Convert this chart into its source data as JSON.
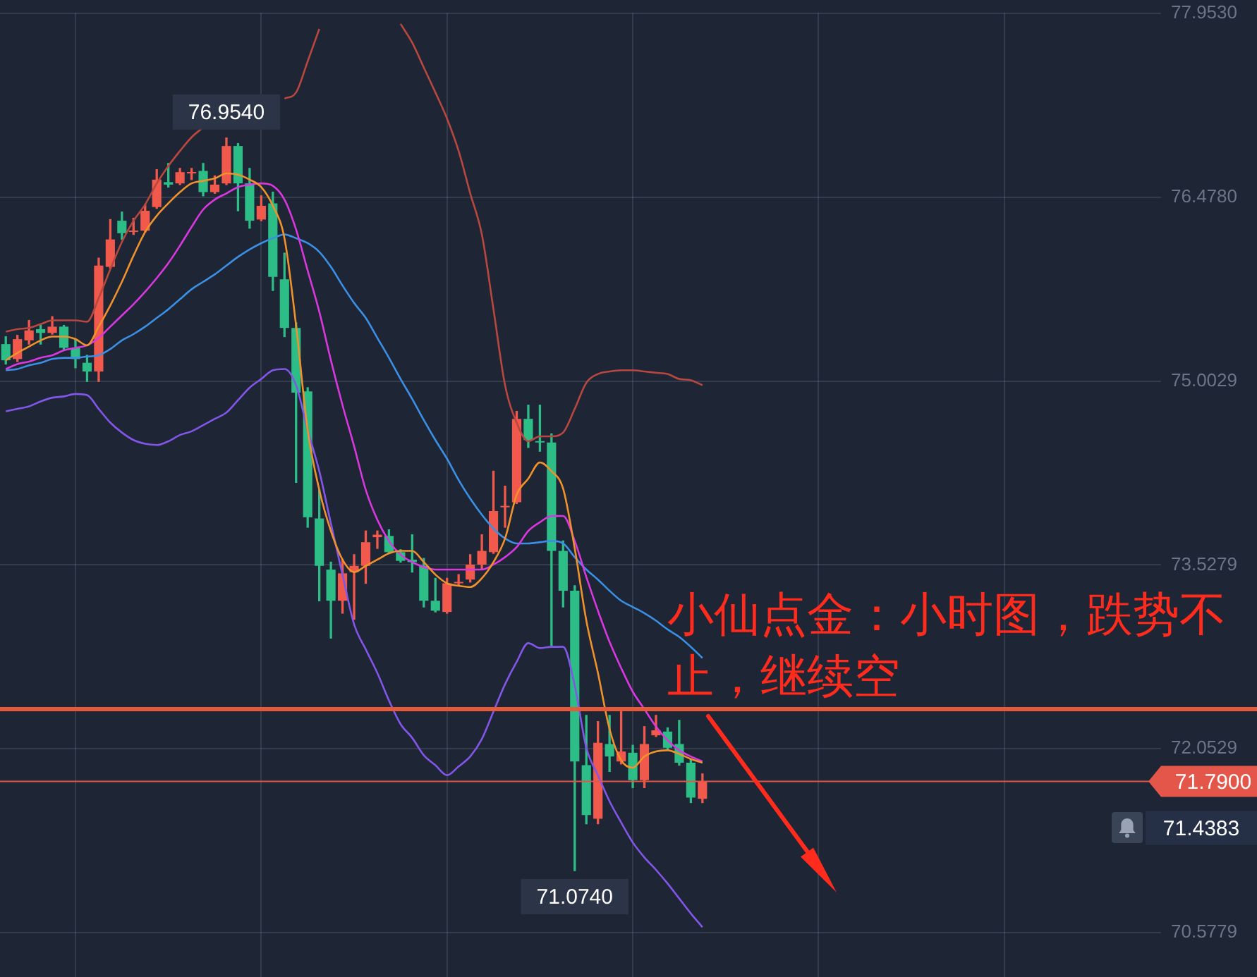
{
  "chart_data": {
    "type": "candlestick",
    "categories": [
      null,
      null,
      null,
      null,
      null,
      null,
      null,
      null,
      null,
      null,
      null,
      null,
      null,
      null,
      null,
      null,
      null,
      null,
      null,
      null,
      null,
      null,
      null,
      null,
      null,
      null,
      null,
      null,
      null,
      null,
      null,
      null,
      null,
      null,
      null,
      null,
      null,
      null,
      null,
      null,
      null,
      null,
      null,
      null,
      null,
      null,
      null,
      null,
      null,
      null,
      null,
      null,
      null,
      null,
      null,
      null,
      null,
      null,
      null,
      null,
      null,
      null,
      null,
      null,
      null,
      null,
      null,
      null,
      null,
      null,
      null,
      null,
      null,
      null,
      null,
      null,
      null,
      null,
      null,
      null,
      null,
      null,
      null,
      null,
      null,
      null,
      null,
      null,
      null,
      null,
      null,
      null,
      null,
      null,
      null,
      null,
      null,
      null,
      null,
      null
    ],
    "ohlc": [
      [
        75.3,
        75.36,
        75.14,
        75.17
      ],
      [
        75.18,
        75.37,
        75.16,
        75.34
      ],
      [
        75.33,
        75.49,
        75.3,
        75.41
      ],
      [
        75.42,
        75.45,
        75.3,
        75.39
      ],
      [
        75.39,
        75.52,
        75.38,
        75.44
      ],
      [
        75.44,
        75.45,
        75.26,
        75.27
      ],
      [
        75.27,
        75.34,
        75.11,
        75.18
      ],
      [
        75.15,
        75.21,
        75.0,
        75.08
      ],
      [
        75.08,
        75.99,
        75.0,
        75.93
      ],
      [
        75.92,
        76.3,
        75.91,
        76.14
      ],
      [
        76.29,
        76.36,
        76.14,
        76.19
      ],
      [
        76.2,
        76.31,
        76.18,
        76.21
      ],
      [
        76.21,
        76.42,
        76.2,
        76.37
      ],
      [
        76.4,
        76.7,
        76.39,
        76.62
      ],
      [
        76.6,
        76.75,
        76.56,
        76.58
      ],
      [
        76.59,
        76.71,
        76.58,
        76.68
      ],
      [
        76.67,
        76.71,
        76.62,
        76.68
      ],
      [
        76.69,
        76.75,
        76.49,
        76.52
      ],
      [
        76.52,
        76.65,
        76.51,
        76.58
      ],
      [
        76.59,
        76.954,
        76.58,
        76.89
      ],
      [
        76.89,
        76.91,
        76.37,
        76.59
      ],
      [
        76.59,
        76.71,
        76.23,
        76.29
      ],
      [
        76.3,
        76.49,
        76.29,
        76.41
      ],
      [
        76.43,
        76.52,
        75.73,
        75.84
      ],
      [
        75.82,
        76.03,
        75.36,
        75.43
      ],
      [
        75.43,
        75.47,
        74.19,
        74.91
      ],
      [
        74.92,
        74.95,
        73.83,
        73.91
      ],
      [
        73.9,
        74.13,
        73.24,
        73.52
      ],
      [
        73.49,
        73.55,
        72.94,
        73.24
      ],
      [
        73.24,
        73.57,
        73.14,
        73.46
      ],
      [
        73.47,
        73.61,
        73.09,
        73.52
      ],
      [
        73.52,
        73.8,
        73.38,
        73.71
      ],
      [
        73.75,
        73.8,
        73.66,
        73.77
      ],
      [
        73.76,
        73.81,
        73.62,
        73.63
      ],
      [
        73.63,
        73.65,
        73.55,
        73.56
      ],
      [
        73.57,
        73.77,
        73.47,
        73.55
      ],
      [
        73.52,
        73.58,
        73.19,
        73.24
      ],
      [
        73.24,
        73.42,
        73.15,
        73.16
      ],
      [
        73.15,
        73.42,
        73.14,
        73.38
      ],
      [
        73.38,
        73.45,
        73.36,
        73.39
      ],
      [
        73.41,
        73.61,
        73.39,
        73.53
      ],
      [
        73.53,
        73.77,
        73.49,
        73.64
      ],
      [
        73.63,
        74.28,
        73.62,
        73.96
      ],
      [
        73.99,
        74.16,
        73.83,
        74.0
      ],
      [
        74.03,
        74.76,
        74.02,
        74.7
      ],
      [
        74.7,
        74.81,
        74.47,
        74.53
      ],
      [
        74.52,
        74.81,
        74.44,
        74.51
      ],
      [
        74.51,
        74.58,
        72.88,
        73.64
      ],
      [
        73.64,
        73.72,
        73.19,
        73.32
      ],
      [
        73.32,
        73.36,
        71.074,
        71.95
      ],
      [
        71.92,
        72.32,
        71.45,
        71.52
      ],
      [
        71.49,
        72.27,
        71.45,
        72.1
      ],
      [
        72.09,
        72.32,
        71.87,
        71.99
      ],
      [
        71.95,
        72.35,
        71.93,
        72.03
      ],
      [
        72.02,
        72.08,
        71.74,
        71.8
      ],
      [
        71.8,
        72.23,
        71.74,
        72.09
      ],
      [
        72.16,
        72.32,
        72.15,
        72.2
      ],
      [
        72.19,
        72.22,
        72.04,
        72.06
      ],
      [
        72.09,
        72.28,
        71.92,
        71.94
      ],
      [
        71.94,
        71.97,
        71.62,
        71.66
      ],
      [
        71.65,
        71.85,
        71.62,
        71.79
      ],
      null,
      null,
      null,
      null,
      null,
      null,
      null,
      null,
      null,
      null,
      null,
      null,
      null,
      null,
      null,
      null,
      null,
      null,
      null,
      null,
      null,
      null,
      null,
      null,
      null,
      null,
      null,
      null,
      null,
      null,
      null,
      null,
      null,
      null,
      null,
      null,
      null,
      null,
      null
    ],
    "colors": [
      "#2dbd86",
      "#f0594b",
      "#f0594b",
      "#2dbd86",
      "#f0594b",
      "#2dbd86",
      "#2dbd86",
      "#2dbd86",
      "#f0594b",
      "#f0594b",
      "#2dbd86",
      "#f0594b",
      "#f0594b",
      "#f0594b",
      "#2dbd86",
      "#f0594b",
      "#f0594b",
      "#2dbd86",
      "#f0594b",
      "#f0594b",
      "#2dbd86",
      "#2dbd86",
      "#f0594b",
      "#2dbd86",
      "#2dbd86",
      "#2dbd86",
      "#2dbd86",
      "#2dbd86",
      "#2dbd86",
      "#f0594b",
      "#f0594b",
      "#f0594b",
      "#f0594b",
      "#2dbd86",
      "#2dbd86",
      "#2dbd86",
      "#2dbd86",
      "#2dbd86",
      "#f0594b",
      "#f0594b",
      "#f0594b",
      "#f0594b",
      "#f0594b",
      "#f0594b",
      "#f0594b",
      "#2dbd86",
      "#2dbd86",
      "#2dbd86",
      "#2dbd86",
      "#2dbd86",
      "#2dbd86",
      "#f0594b",
      "#2dbd86",
      "#f0594b",
      "#2dbd86",
      "#f0594b",
      "#f0594b",
      "#2dbd86",
      "#2dbd86",
      "#2dbd86",
      "#f0594b",
      null,
      null,
      null,
      null,
      null,
      null,
      null,
      null,
      null,
      null,
      null,
      null,
      null,
      null,
      null,
      null,
      null,
      null,
      null,
      null,
      null,
      null,
      null,
      null,
      null,
      null,
      null,
      null,
      null,
      null,
      null,
      null,
      null,
      null,
      null,
      null,
      null,
      null,
      null
    ],
    "series": [
      {
        "type": "line",
        "color": "#f0922c",
        "values": [
          75.17,
          75.23,
          75.28,
          75.33,
          75.36,
          75.36,
          75.34,
          75.29,
          75.44,
          75.61,
          75.8,
          76.01,
          76.2,
          76.33,
          76.43,
          76.52,
          76.59,
          76.61,
          76.63,
          76.67,
          76.66,
          76.62,
          76.56,
          76.41,
          76.15,
          75.45,
          74.61,
          74.13,
          73.8,
          73.57,
          73.47,
          73.52,
          73.57,
          73.62,
          73.64,
          73.64,
          73.55,
          73.45,
          73.38,
          73.36,
          73.35,
          73.42,
          73.55,
          73.74,
          74.09,
          74.22,
          74.35,
          74.28,
          74.14,
          73.66,
          73.08,
          72.66,
          72.21,
          71.96,
          71.9,
          71.99,
          72.03,
          72.04,
          72.01,
          71.97,
          71.94,
          null,
          null,
          null,
          null,
          null,
          null,
          null,
          null,
          null,
          null,
          null,
          null,
          null,
          null,
          null,
          null,
          null,
          null,
          null,
          null,
          null,
          null,
          null,
          null,
          null,
          null,
          null,
          null,
          null,
          null,
          null,
          null,
          null,
          null,
          null,
          null,
          null,
          null,
          null
        ]
      },
      {
        "type": "line",
        "color": "#d838de",
        "values": [
          75.1,
          75.14,
          75.16,
          75.19,
          75.21,
          75.25,
          75.27,
          75.29,
          75.35,
          75.44,
          75.53,
          75.62,
          75.72,
          75.83,
          75.95,
          76.09,
          76.24,
          76.38,
          76.46,
          76.51,
          76.56,
          76.58,
          76.59,
          76.57,
          76.46,
          76.22,
          75.89,
          75.56,
          75.17,
          74.81,
          74.48,
          74.13,
          73.89,
          73.72,
          73.61,
          73.55,
          73.51,
          73.49,
          73.49,
          73.49,
          73.49,
          73.49,
          73.53,
          73.59,
          73.67,
          73.8,
          73.87,
          73.92,
          73.92,
          73.72,
          73.43,
          73.16,
          72.91,
          72.7,
          72.51,
          72.37,
          72.23,
          72.12,
          72.04,
          71.99,
          71.95,
          null,
          null,
          null,
          null,
          null,
          null,
          null,
          null,
          null,
          null,
          null,
          null,
          null,
          null,
          null,
          null,
          null,
          null,
          null,
          null,
          null,
          null,
          null,
          null,
          null,
          null,
          null,
          null,
          null,
          null,
          null,
          null,
          null,
          null,
          null,
          null,
          null,
          null,
          null
        ]
      },
      {
        "type": "line",
        "color": "#3b8fe4",
        "values": [
          75.09,
          75.1,
          75.13,
          75.15,
          75.18,
          75.19,
          75.19,
          75.2,
          75.21,
          75.26,
          75.33,
          75.38,
          75.44,
          75.51,
          75.58,
          75.66,
          75.74,
          75.8,
          75.86,
          75.93,
          76.0,
          76.06,
          76.11,
          76.15,
          76.18,
          76.15,
          76.11,
          76.04,
          75.92,
          75.77,
          75.63,
          75.51,
          75.35,
          75.19,
          75.02,
          74.86,
          74.69,
          74.53,
          74.38,
          74.21,
          74.06,
          73.93,
          73.82,
          73.74,
          73.7,
          73.7,
          73.71,
          73.72,
          73.7,
          73.59,
          73.49,
          73.41,
          73.32,
          73.24,
          73.19,
          73.14,
          73.08,
          73.01,
          72.95,
          72.87,
          72.78,
          null,
          null,
          null,
          null,
          null,
          null,
          null,
          null,
          null,
          null,
          null,
          null,
          null,
          null,
          null,
          null,
          null,
          null,
          null,
          null,
          null,
          null,
          null,
          null,
          null,
          null,
          null,
          null,
          null,
          null,
          null,
          null,
          null,
          null,
          null,
          null,
          null,
          null,
          null
        ]
      },
      {
        "type": "line",
        "color": "#b8483f",
        "values": [
          75.4,
          75.42,
          75.43,
          75.46,
          75.49,
          75.49,
          75.49,
          75.48,
          75.67,
          75.9,
          76.12,
          76.29,
          76.42,
          76.59,
          76.73,
          76.85,
          76.96,
          77.04,
          null,
          null,
          null,
          null,
          null,
          null,
          77.27,
          77.32,
          77.57,
          77.83,
          null,
          null,
          null,
          null,
          null,
          null,
          77.87,
          77.72,
          77.52,
          77.32,
          77.11,
          76.85,
          76.51,
          76.18,
          75.58,
          74.97,
          74.67,
          74.52,
          74.56,
          74.56,
          74.59,
          74.78,
          74.99,
          75.06,
          75.08,
          75.09,
          75.09,
          75.08,
          75.07,
          75.06,
          75.02,
          75.01,
          74.97,
          null,
          null,
          null,
          null,
          null,
          null,
          null,
          null,
          null,
          null,
          null,
          null,
          null,
          null,
          null,
          null,
          null,
          null,
          null,
          null,
          null,
          null,
          null,
          null,
          null,
          null,
          null,
          null,
          null,
          null,
          null,
          null,
          null,
          null,
          null,
          null,
          null,
          null,
          null
        ]
      },
      {
        "type": "line",
        "color": "#8256e8",
        "values": [
          74.76,
          74.78,
          74.8,
          74.84,
          74.87,
          74.88,
          74.9,
          74.89,
          74.78,
          74.67,
          74.59,
          74.53,
          74.5,
          74.49,
          74.52,
          74.57,
          74.6,
          74.65,
          74.7,
          74.75,
          74.85,
          74.95,
          75.02,
          75.09,
          75.1,
          74.97,
          74.61,
          74.28,
          73.86,
          73.45,
          73.05,
          72.85,
          72.66,
          72.44,
          72.25,
          72.14,
          72.0,
          71.92,
          71.84,
          71.91,
          71.99,
          72.13,
          72.35,
          72.57,
          72.75,
          72.9,
          72.86,
          72.87,
          72.87,
          72.56,
          72.06,
          71.84,
          71.63,
          71.46,
          71.3,
          71.18,
          71.08,
          70.97,
          70.85,
          70.73,
          70.62,
          null,
          null,
          null,
          null,
          null,
          null,
          null,
          null,
          null,
          null,
          null,
          null,
          null,
          null,
          null,
          null,
          null,
          null,
          null,
          null,
          null,
          null,
          null,
          null,
          null,
          null,
          null,
          null,
          null,
          null,
          null,
          null,
          null,
          null,
          null,
          null,
          null,
          null,
          null
        ]
      }
    ],
    "ylim": [
      70.22,
      77.96
    ],
    "yticks": [
      70.5779,
      72.0529,
      73.5279,
      75.0029,
      {
        "value": 76.478,
        "label": "76.4780"
      },
      {
        "value": 77.953,
        "label": "77.9530"
      }
    ],
    "grid": true,
    "tick_labels": "y",
    "ref_lines": [
      {
        "axis": "y",
        "value": 72.37,
        "color": "#e35b3a"
      },
      {
        "axis": "y",
        "value": 71.79,
        "label": "71.7900",
        "color": "#e5564a"
      }
    ],
    "annotations": [
      "小仙点金：小时图，跌势不止，继续空",
      {
        "text": "76.9540",
        "y": 76.954
      },
      {
        "text": "71.0740",
        "y": 71.074
      },
      "71.4383"
    ]
  }
}
